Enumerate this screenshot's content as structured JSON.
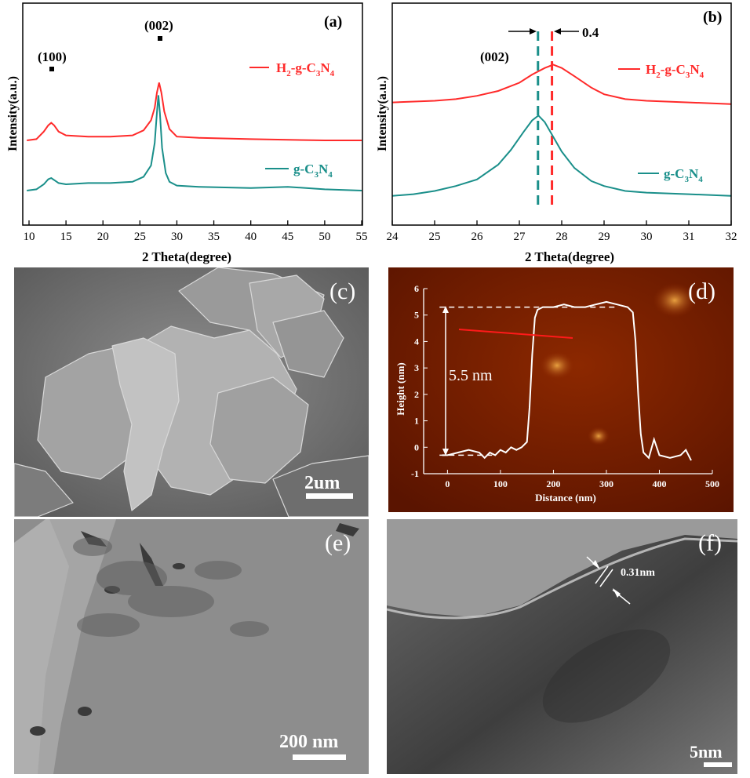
{
  "panels": {
    "a": {
      "label": "(a)",
      "annotations": {
        "peak100": "(100)",
        "peak002": "(002)"
      },
      "legend": [
        {
          "name_parts": [
            "H",
            "2",
            "-g-C",
            "3",
            "N",
            "4"
          ],
          "color": "#ff2a2a"
        },
        {
          "name_parts": [
            "g-C",
            "3",
            "N",
            "4"
          ],
          "color": "#1a8f8a"
        }
      ]
    },
    "b": {
      "label": "(b)",
      "annotations": {
        "peak002": "(002)",
        "shift": "0.4"
      },
      "legend": [
        {
          "name_parts": [
            "H",
            "2",
            "-g-C",
            "3",
            "N",
            "4"
          ],
          "color": "#ff2a2a"
        },
        {
          "name_parts": [
            "g-C",
            "3",
            "N",
            "4"
          ],
          "color": "#1a8f8a"
        }
      ]
    },
    "c": {
      "label": "(c)",
      "scale_bar": "2um"
    },
    "d": {
      "label": "(d)",
      "height_annotation": "5.5 nm"
    },
    "e": {
      "label": "(e)",
      "scale_bar": "200 nm"
    },
    "f": {
      "label": "(f)",
      "scale_bar": "5nm",
      "spacing": "0.31nm"
    }
  },
  "chart_data": [
    {
      "type": "line",
      "panel": "a",
      "xlabel": "2 Theta(degree)",
      "ylabel": "Intensity(a.u.)",
      "xlim": [
        10,
        55
      ],
      "xticks": [
        10,
        15,
        20,
        25,
        30,
        35,
        40,
        45,
        50,
        55
      ],
      "yticks": [],
      "series": [
        {
          "name": "H2-g-C3N4",
          "color": "#ff2a2a",
          "x": [
            9.7,
            11,
            12,
            12.6,
            13,
            13.4,
            14,
            15,
            18,
            21,
            24,
            25.5,
            26.5,
            27,
            27.3,
            27.6,
            27.9,
            28.3,
            29,
            30,
            33,
            40,
            50,
            55
          ],
          "y": [
            0.4,
            0.41,
            0.47,
            0.52,
            0.54,
            0.52,
            0.47,
            0.44,
            0.43,
            0.43,
            0.44,
            0.48,
            0.56,
            0.66,
            0.78,
            0.86,
            0.78,
            0.63,
            0.49,
            0.43,
            0.42,
            0.41,
            0.4,
            0.4
          ]
        },
        {
          "name": "g-C3N4",
          "color": "#1a8f8a",
          "x": [
            9.7,
            11,
            12,
            12.6,
            13,
            13.5,
            14,
            15,
            18,
            21,
            24,
            25.5,
            26.5,
            27,
            27.3,
            27.5,
            27.7,
            28,
            28.5,
            29,
            30,
            33,
            40,
            45,
            50,
            55
          ],
          "y": [
            0.0,
            0.01,
            0.05,
            0.09,
            0.1,
            0.08,
            0.06,
            0.05,
            0.06,
            0.06,
            0.07,
            0.11,
            0.2,
            0.38,
            0.62,
            0.76,
            0.62,
            0.34,
            0.14,
            0.07,
            0.04,
            0.03,
            0.02,
            0.03,
            0.01,
            0.0
          ]
        }
      ]
    },
    {
      "type": "line",
      "panel": "b",
      "xlabel": "2 Theta(degree)",
      "ylabel": "Intensity(a.u.)",
      "xlim": [
        24,
        32
      ],
      "xticks": [
        24,
        25,
        26,
        27,
        28,
        29,
        30,
        31,
        32
      ],
      "yticks": [],
      "markers": [
        27.44,
        27.77
      ],
      "series": [
        {
          "name": "H2-g-C3N4",
          "color": "#ff2a2a",
          "x": [
            24,
            25,
            25.5,
            26,
            26.5,
            27,
            27.3,
            27.6,
            27.8,
            28,
            28.3,
            28.7,
            29,
            29.5,
            30,
            31,
            32
          ],
          "y": [
            0.6,
            0.61,
            0.62,
            0.64,
            0.67,
            0.72,
            0.77,
            0.81,
            0.83,
            0.81,
            0.76,
            0.69,
            0.65,
            0.62,
            0.61,
            0.6,
            0.59
          ]
        },
        {
          "name": "g-C3N4",
          "color": "#1a8f8a",
          "x": [
            24,
            24.5,
            25,
            25.5,
            26,
            26.5,
            26.8,
            27.1,
            27.3,
            27.45,
            27.6,
            27.8,
            28,
            28.3,
            28.7,
            29,
            29.5,
            30,
            31,
            32
          ],
          "y": [
            0.03,
            0.04,
            0.06,
            0.09,
            0.13,
            0.22,
            0.31,
            0.42,
            0.49,
            0.52,
            0.48,
            0.39,
            0.3,
            0.2,
            0.12,
            0.09,
            0.06,
            0.05,
            0.04,
            0.03
          ]
        }
      ]
    },
    {
      "type": "line",
      "panel": "d",
      "xlabel": "Distance (nm)",
      "ylabel": "Height (nm)",
      "xlim": [
        -45,
        500
      ],
      "ylim": [
        -1,
        6
      ],
      "xticks": [
        0,
        100,
        200,
        300,
        400,
        500
      ],
      "yticks": [
        -1,
        0,
        1,
        2,
        3,
        4,
        5,
        6
      ],
      "reference_levels": [
        5.3,
        -0.3
      ],
      "series": [
        {
          "name": "",
          "color": "#ffffff",
          "x": [
            -10,
            0,
            20,
            40,
            60,
            70,
            80,
            90,
            100,
            110,
            120,
            130,
            140,
            150,
            155,
            160,
            165,
            170,
            180,
            200,
            220,
            240,
            260,
            280,
            300,
            320,
            340,
            350,
            355,
            360,
            365,
            370,
            380,
            390,
            400,
            420,
            440,
            450,
            460
          ],
          "y": [
            -0.3,
            -0.3,
            -0.2,
            -0.1,
            -0.2,
            -0.4,
            -0.2,
            -0.3,
            -0.1,
            -0.2,
            0.0,
            -0.1,
            0.0,
            0.2,
            1.5,
            3.5,
            4.9,
            5.2,
            5.3,
            5.3,
            5.4,
            5.3,
            5.3,
            5.4,
            5.5,
            5.4,
            5.3,
            5.1,
            4.0,
            2.0,
            0.5,
            -0.2,
            -0.4,
            0.3,
            -0.3,
            -0.4,
            -0.3,
            -0.1,
            -0.5
          ]
        }
      ]
    }
  ]
}
